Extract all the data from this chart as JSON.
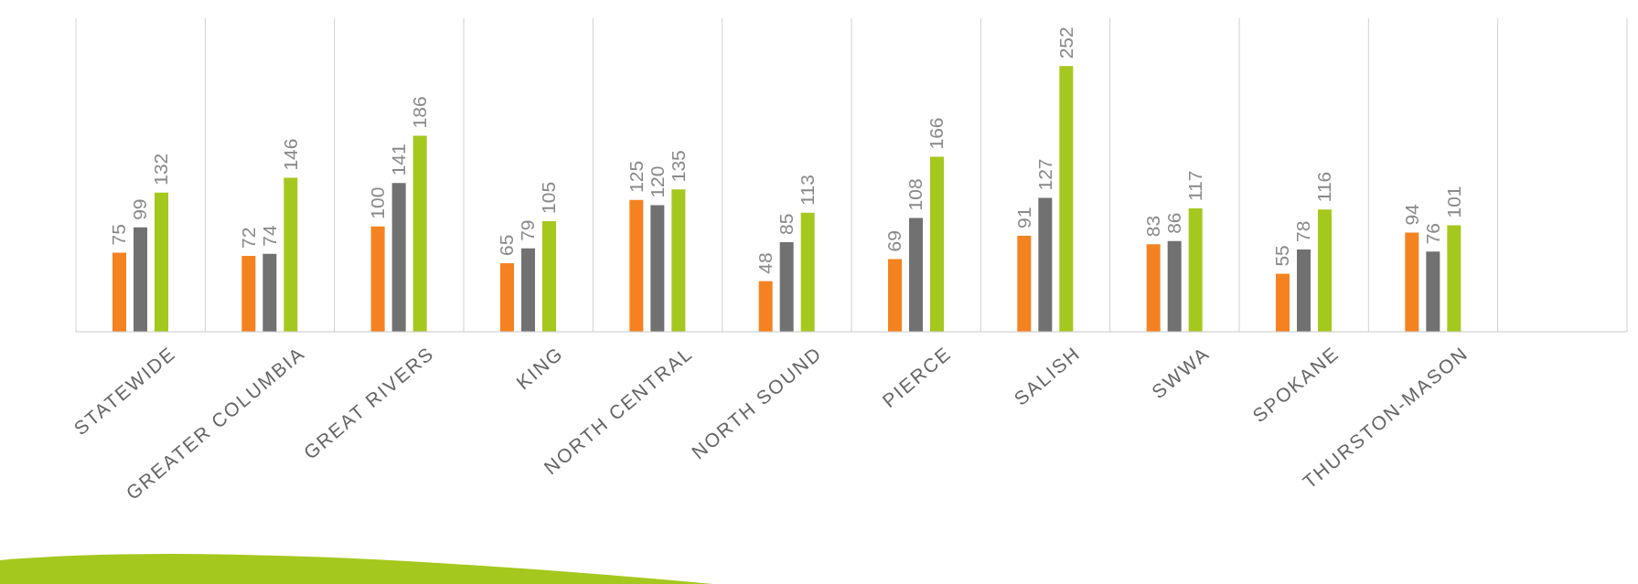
{
  "chart_data": {
    "type": "bar",
    "categories": [
      "STATEWIDE",
      "GREATER COLUMBIA",
      "GREAT RIVERS",
      "KING",
      "NORTH CENTRAL",
      "NORTH SOUND",
      "PIERCE",
      "SALISH",
      "SWWA",
      "SPOKANE",
      "THURSTON-MASON",
      null
    ],
    "series": [
      {
        "color": "#f58220",
        "values": [
          75,
          72,
          100,
          65,
          125,
          48,
          69,
          91,
          83,
          55,
          94,
          null
        ]
      },
      {
        "color": "#717171",
        "values": [
          99,
          74,
          141,
          79,
          120,
          85,
          108,
          127,
          86,
          78,
          76,
          null
        ]
      },
      {
        "color": "#a5c81e",
        "values": [
          132,
          146,
          186,
          105,
          135,
          113,
          166,
          252,
          117,
          116,
          101,
          null
        ]
      }
    ],
    "data_labels": true,
    "grid": "x"
  }
}
